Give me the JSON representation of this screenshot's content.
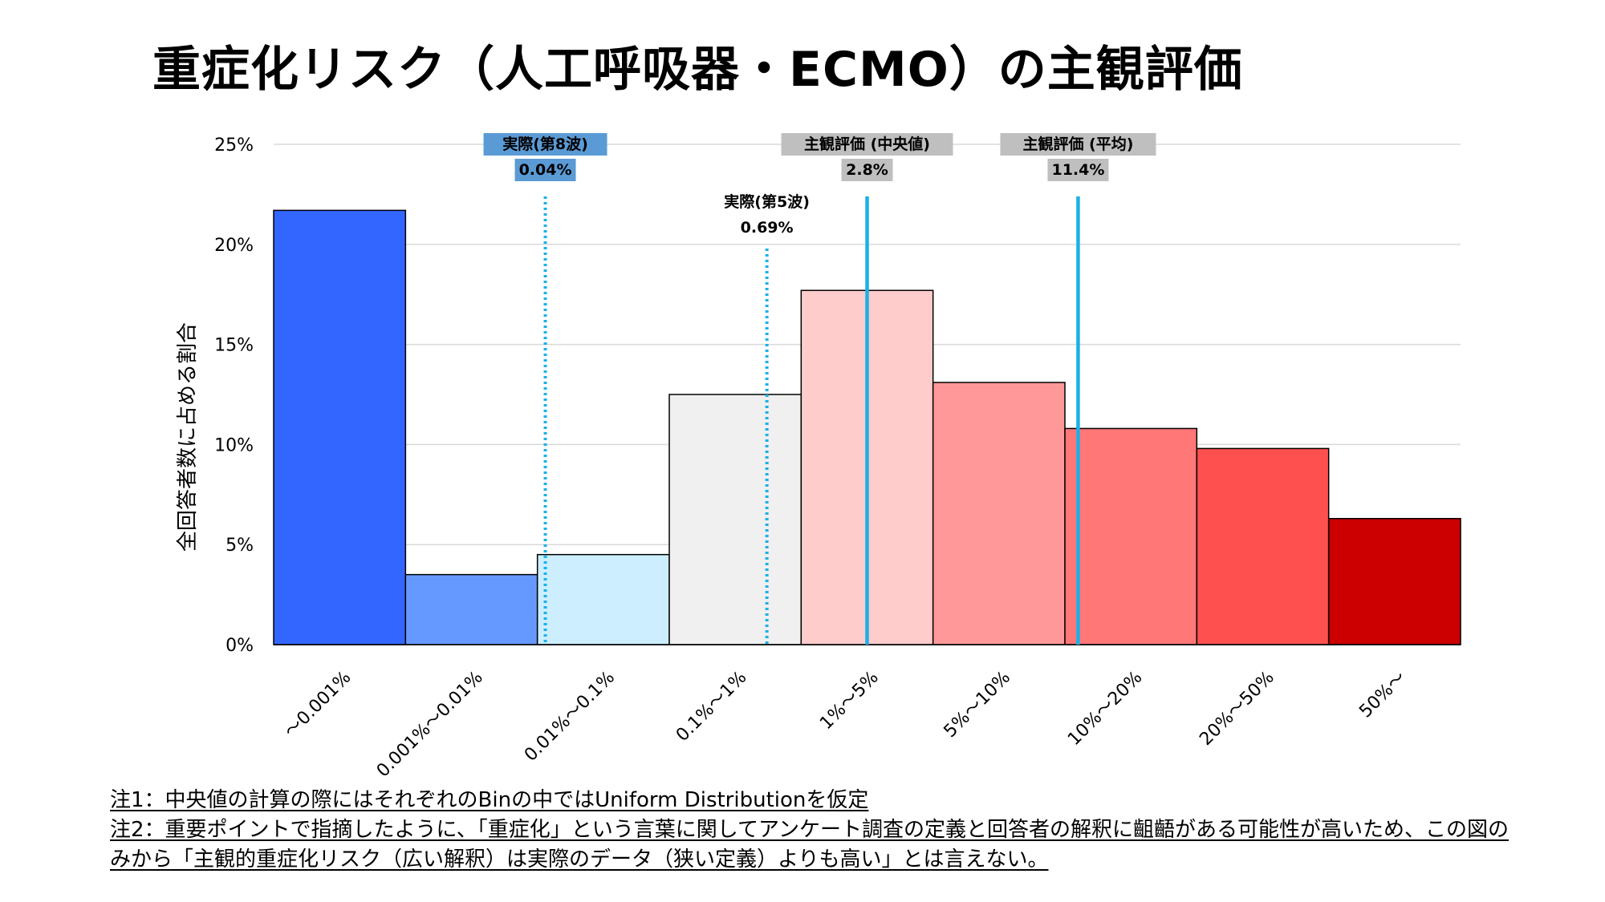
{
  "title": "重症化リスク（人工呼吸器・ECMO）の主観評価",
  "chart_data": {
    "type": "bar",
    "ylabel": "全回答者数に占める割合",
    "ylim": [
      0,
      25
    ],
    "yticks": [
      0,
      5,
      10,
      15,
      20,
      25
    ],
    "ytick_labels": [
      "0%",
      "5%",
      "10%",
      "15%",
      "20%",
      "25%"
    ],
    "categories": [
      "~0.001%",
      "0.001%~0.01%",
      "0.01%~0.1%",
      "0.1%~1%",
      "1%~5%",
      "5%~10%",
      "10%~20%",
      "20%~50%",
      "50%~"
    ],
    "values": [
      21.7,
      3.5,
      4.5,
      12.5,
      17.7,
      13.1,
      10.8,
      9.8,
      6.3
    ],
    "bar_colors": [
      "#3366ff",
      "#6699ff",
      "#cceeff",
      "#f0f0f0",
      "#ffcccc",
      "#ff9999",
      "#ff7777",
      "#ff5050",
      "#cc0000"
    ],
    "grid": true,
    "reference_lines": [
      {
        "label": "実際(第8波)",
        "value_text": "0.04%",
        "position_in_category": 2.06,
        "style": "dotted",
        "color": "#1ab0e8",
        "highlight": "#5b9bd5",
        "label_row": 0
      },
      {
        "label": "実際(第5波)",
        "value_text": "0.69%",
        "position_in_category": 3.74,
        "style": "dotted",
        "color": "#1ab0e8",
        "highlight": "",
        "label_row": 1
      },
      {
        "label": "主観評価 (中央値)",
        "value_text": "2.8%",
        "position_in_category": 4.5,
        "style": "solid",
        "color": "#1ab0e8",
        "highlight": "#bfbfbf",
        "label_row": 0
      },
      {
        "label": "主観評価 (平均)",
        "value_text": "11.4%",
        "position_in_category": 6.1,
        "style": "solid",
        "color": "#1ab0e8",
        "highlight": "#bfbfbf",
        "label_row": 0
      }
    ]
  },
  "notes": [
    "注1：中央値の計算の際にはそれぞれのBinの中ではUniform Distributionを仮定",
    "注2：重要ポイントで指摘したように、「重症化」という言葉に関してアンケート調査の定義と回答者の解釈に齟齬がある可能性が高いため、この図のみから「主観的重症化リスク（広い解釈）は実際のデータ（狭い定義）よりも高い」とは言えない。"
  ]
}
